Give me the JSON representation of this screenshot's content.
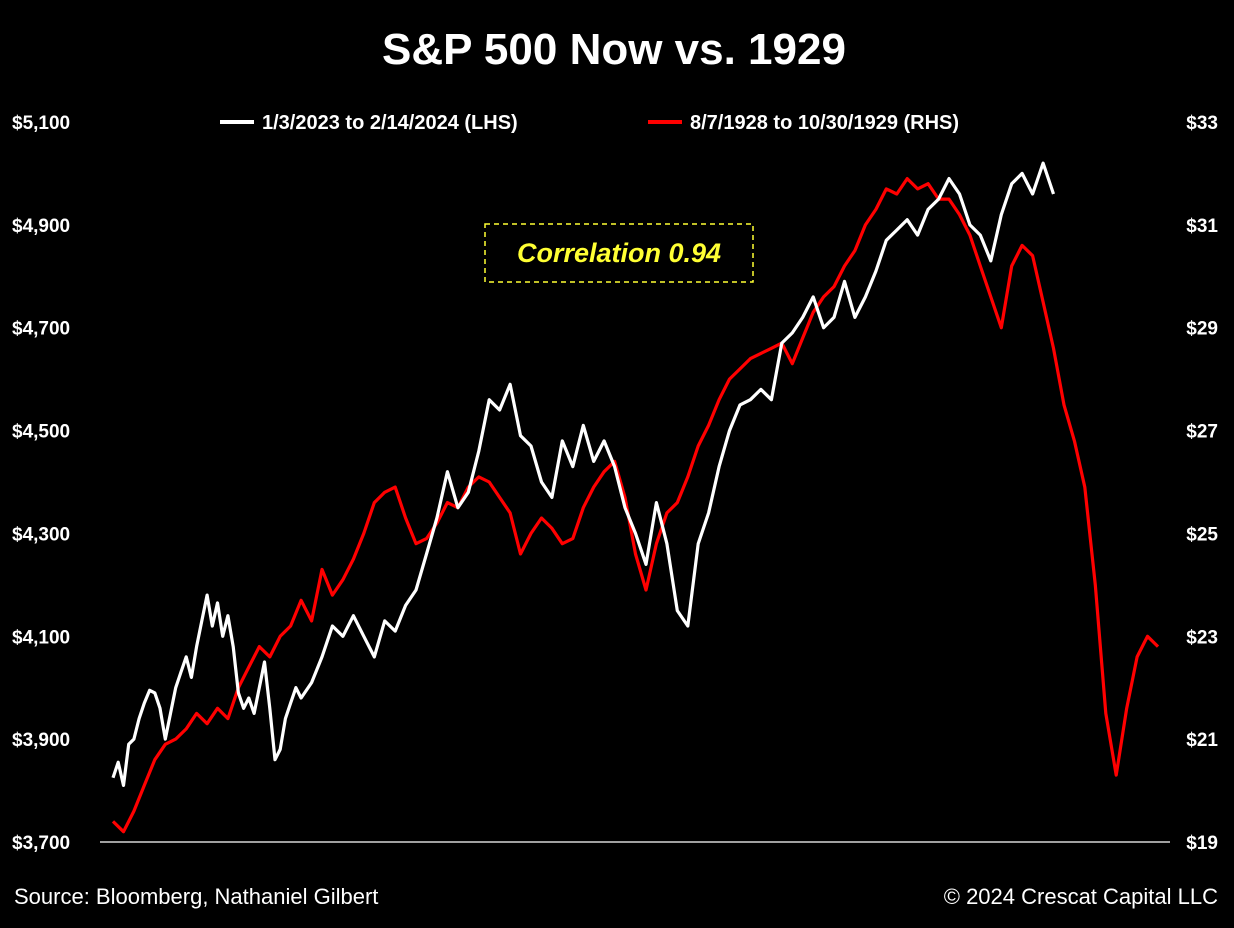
{
  "chart_data": {
    "type": "line",
    "title": "S&P 500 Now vs. 1929",
    "left_axis": {
      "ticks": [
        3700,
        3900,
        4100,
        4300,
        4500,
        4700,
        4900,
        5100
      ],
      "tick_labels": [
        "$3,700",
        "$3,900",
        "$4,100",
        "$4,300",
        "$4,500",
        "$4,700",
        "$4,900",
        "$5,100"
      ],
      "range": [
        3700,
        5100
      ]
    },
    "right_axis": {
      "ticks": [
        19,
        21,
        23,
        25,
        27,
        29,
        31,
        33
      ],
      "tick_labels": [
        "$19",
        "$21",
        "$23",
        "$25",
        "$27",
        "$29",
        "$31",
        "$33"
      ],
      "range": [
        19,
        33
      ]
    },
    "x_range": [
      0,
      1
    ],
    "grid": false,
    "legend_position": "top",
    "annotation": {
      "text": "Correlation 0.94",
      "color": "#ffff33"
    },
    "source": "Source: Bloomberg, Nathaniel Gilbert",
    "copyright": "© 2024 Crescat Capital LLC",
    "series": [
      {
        "name": "1/3/2023 to 2/14/2024 (LHS)",
        "axis": "left",
        "color": "#ffffff",
        "x": [
          0.0,
          0.005,
          0.01,
          0.015,
          0.02,
          0.025,
          0.03,
          0.035,
          0.04,
          0.045,
          0.05,
          0.055,
          0.06,
          0.065,
          0.07,
          0.075,
          0.08,
          0.085,
          0.09,
          0.095,
          0.1,
          0.105,
          0.11,
          0.115,
          0.12,
          0.125,
          0.13,
          0.135,
          0.14,
          0.145,
          0.15,
          0.155,
          0.16,
          0.165,
          0.17,
          0.175,
          0.18,
          0.19,
          0.2,
          0.21,
          0.22,
          0.23,
          0.24,
          0.25,
          0.26,
          0.27,
          0.28,
          0.29,
          0.3,
          0.31,
          0.32,
          0.33,
          0.34,
          0.35,
          0.36,
          0.37,
          0.38,
          0.39,
          0.4,
          0.41,
          0.42,
          0.43,
          0.44,
          0.45,
          0.46,
          0.47,
          0.48,
          0.49,
          0.5,
          0.51,
          0.52,
          0.53,
          0.54,
          0.55,
          0.56,
          0.57,
          0.58,
          0.59,
          0.6,
          0.61,
          0.62,
          0.63,
          0.64,
          0.65,
          0.66,
          0.67,
          0.68,
          0.69,
          0.7,
          0.71,
          0.72,
          0.73,
          0.74,
          0.75,
          0.76,
          0.77,
          0.78,
          0.79,
          0.8,
          0.81,
          0.82,
          0.83,
          0.84,
          0.85,
          0.86,
          0.87,
          0.88,
          0.89,
          0.9
        ],
        "values": [
          3825,
          3855,
          3810,
          3890,
          3900,
          3940,
          3970,
          3995,
          3990,
          3960,
          3900,
          3950,
          4000,
          4030,
          4060,
          4020,
          4080,
          4130,
          4180,
          4120,
          4165,
          4100,
          4140,
          4080,
          3990,
          3960,
          3980,
          3950,
          4000,
          4050,
          3960,
          3860,
          3880,
          3940,
          3970,
          4000,
          3980,
          4010,
          4060,
          4120,
          4100,
          4140,
          4100,
          4060,
          4130,
          4110,
          4160,
          4190,
          4260,
          4330,
          4420,
          4350,
          4380,
          4460,
          4560,
          4540,
          4590,
          4490,
          4470,
          4400,
          4370,
          4480,
          4430,
          4510,
          4440,
          4480,
          4430,
          4350,
          4300,
          4240,
          4360,
          4280,
          4150,
          4120,
          4280,
          4340,
          4430,
          4500,
          4550,
          4560,
          4580,
          4560,
          4670,
          4690,
          4720,
          4760,
          4700,
          4720,
          4790,
          4720,
          4760,
          4810,
          4870,
          4890,
          4910,
          4880,
          4930,
          4950,
          4990,
          4960,
          4900,
          4880,
          4830,
          4920,
          4980,
          5000,
          4960,
          5020,
          4960
        ]
      },
      {
        "name": "8/7/1928 to 10/30/1929 (RHS)",
        "axis": "right",
        "color": "#ff0000",
        "x": [
          0.0,
          0.01,
          0.02,
          0.03,
          0.04,
          0.05,
          0.06,
          0.07,
          0.08,
          0.09,
          0.1,
          0.11,
          0.12,
          0.13,
          0.14,
          0.15,
          0.16,
          0.17,
          0.18,
          0.19,
          0.2,
          0.21,
          0.22,
          0.23,
          0.24,
          0.25,
          0.26,
          0.27,
          0.28,
          0.29,
          0.3,
          0.31,
          0.32,
          0.33,
          0.34,
          0.35,
          0.36,
          0.37,
          0.38,
          0.39,
          0.4,
          0.41,
          0.42,
          0.43,
          0.44,
          0.45,
          0.46,
          0.47,
          0.48,
          0.49,
          0.5,
          0.51,
          0.52,
          0.53,
          0.54,
          0.55,
          0.56,
          0.57,
          0.58,
          0.59,
          0.6,
          0.61,
          0.62,
          0.63,
          0.64,
          0.65,
          0.66,
          0.67,
          0.68,
          0.69,
          0.7,
          0.71,
          0.72,
          0.73,
          0.74,
          0.75,
          0.76,
          0.77,
          0.78,
          0.79,
          0.8,
          0.81,
          0.82,
          0.83,
          0.84,
          0.85,
          0.86,
          0.87,
          0.88,
          0.89,
          0.9,
          0.91,
          0.92,
          0.93,
          0.94,
          0.95,
          0.96,
          0.97,
          0.98,
          0.99,
          1.0
        ],
        "values": [
          19.4,
          19.2,
          19.6,
          20.1,
          20.6,
          20.9,
          21.0,
          21.2,
          21.5,
          21.3,
          21.6,
          21.4,
          22.0,
          22.4,
          22.8,
          22.6,
          23.0,
          23.2,
          23.7,
          23.3,
          24.3,
          23.8,
          24.1,
          24.5,
          25.0,
          25.6,
          25.8,
          25.9,
          25.3,
          24.8,
          24.9,
          25.2,
          25.6,
          25.5,
          25.9,
          26.1,
          26.0,
          25.7,
          25.4,
          24.6,
          25.0,
          25.3,
          25.1,
          24.8,
          24.9,
          25.5,
          25.9,
          26.2,
          26.4,
          25.7,
          24.6,
          23.9,
          24.8,
          25.4,
          25.6,
          26.1,
          26.7,
          27.1,
          27.6,
          28.0,
          28.2,
          28.4,
          28.5,
          28.6,
          28.7,
          28.3,
          28.8,
          29.3,
          29.6,
          29.8,
          30.2,
          30.5,
          31.0,
          31.3,
          31.7,
          31.6,
          31.9,
          31.7,
          31.8,
          31.5,
          31.5,
          31.2,
          30.8,
          30.2,
          29.6,
          29.0,
          30.2,
          30.6,
          30.4,
          29.5,
          28.6,
          27.5,
          26.8,
          25.9,
          24.0,
          21.5,
          20.3,
          21.6,
          22.6,
          23.0,
          22.8
        ]
      }
    ]
  }
}
